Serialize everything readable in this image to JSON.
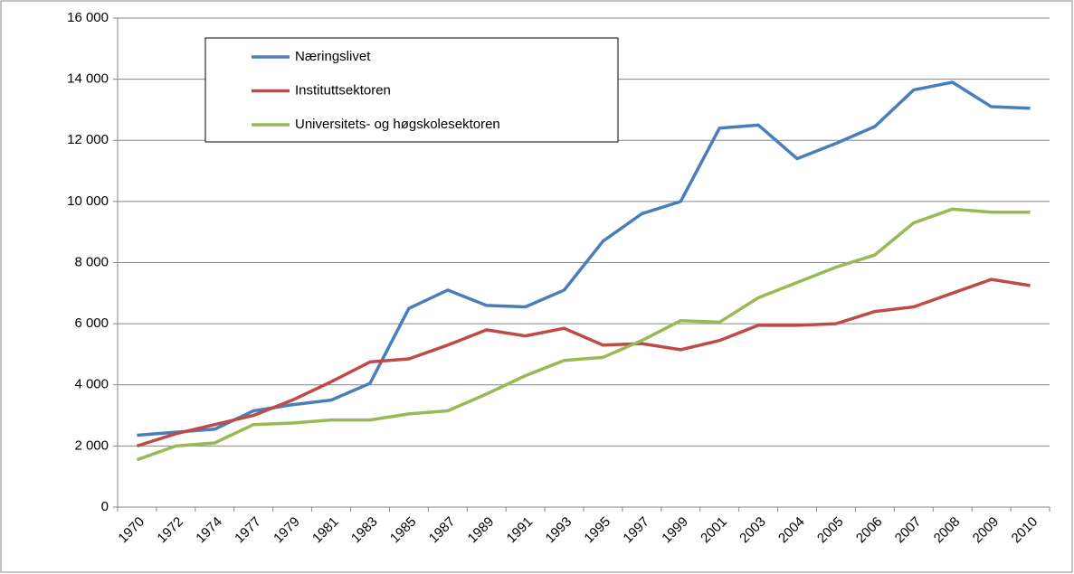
{
  "chart_data": {
    "type": "line",
    "categories": [
      "1970",
      "1972",
      "1974",
      "1977",
      "1979",
      "1981",
      "1983",
      "1985",
      "1987",
      "1989",
      "1991",
      "1993",
      "1995",
      "1997",
      "1999",
      "2001",
      "2003",
      "2004",
      "2005",
      "2006",
      "2007",
      "2008",
      "2009",
      "2010"
    ],
    "series": [
      {
        "name": "Næringslivet",
        "color": "#4a7ebb",
        "values": [
          2350,
          2450,
          2550,
          3150,
          3350,
          3500,
          4050,
          6500,
          7100,
          6600,
          6550,
          7100,
          8700,
          9600,
          10000,
          12400,
          12500,
          11400,
          11900,
          12450,
          13650,
          13900,
          13100,
          13050
        ]
      },
      {
        "name": "Instituttsektoren",
        "color": "#be4b48",
        "values": [
          2000,
          2400,
          2700,
          3000,
          3500,
          4100,
          4750,
          4850,
          5300,
          5800,
          5600,
          5850,
          5300,
          5350,
          5150,
          5450,
          5950,
          5950,
          6000,
          6400,
          6550,
          7000,
          7450,
          7250
        ]
      },
      {
        "name": "Universitets- og høgskolesektoren",
        "color": "#98b954",
        "values": [
          1550,
          2000,
          2100,
          2700,
          2750,
          2850,
          2850,
          3050,
          3150,
          3700,
          4300,
          4800,
          4900,
          5450,
          6100,
          6050,
          6850,
          7350,
          7850,
          8250,
          9300,
          9750,
          9650,
          9650
        ]
      }
    ],
    "ylim": [
      0,
      16000
    ],
    "yticks": [
      0,
      {
        "value": 2000,
        "label": "2 000"
      },
      {
        "value": 4000,
        "label": "4 000"
      },
      {
        "value": 6000,
        "label": "6 000"
      },
      {
        "value": 8000,
        "label": "8 000"
      },
      {
        "value": 10000,
        "label": "10 000"
      },
      {
        "value": 12000,
        "label": "12 000"
      },
      {
        "value": 14000,
        "label": "14 000"
      },
      {
        "value": 16000,
        "label": "16 000"
      }
    ],
    "grid": true,
    "legend": "upper left"
  }
}
